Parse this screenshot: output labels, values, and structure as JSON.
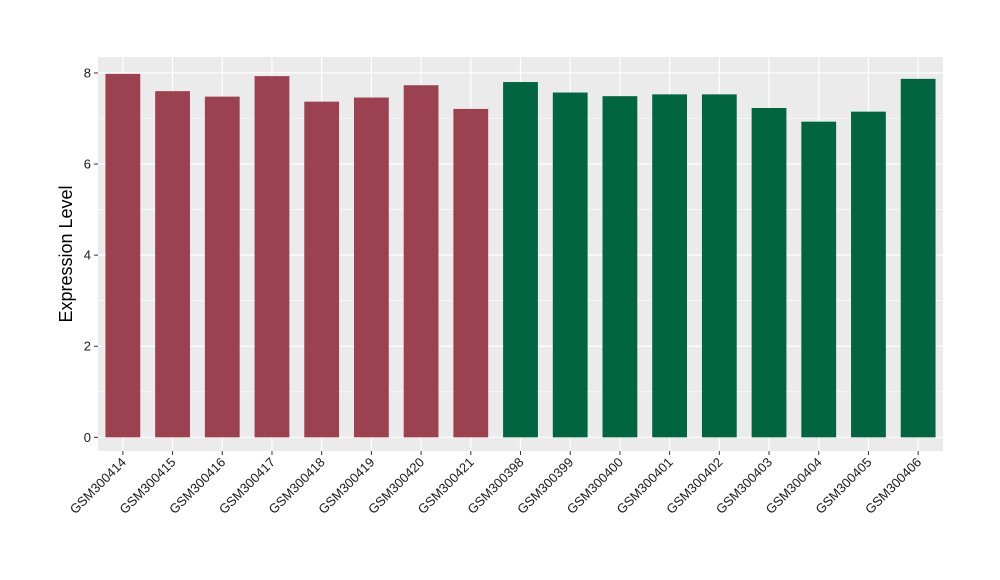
{
  "chart_data": {
    "type": "bar",
    "title": "",
    "xlabel": "",
    "ylabel": "Expression Level",
    "ylim": [
      -0.3,
      8.35
    ],
    "y_ticks": [
      0,
      2,
      4,
      6,
      8
    ],
    "grid": true,
    "legend": "none",
    "colors": {
      "group_a": "#9b4150",
      "group_b": "#006540",
      "panel": "#ebebeb",
      "grid": "#ffffff"
    },
    "categories": [
      "GSM300414",
      "GSM300415",
      "GSM300416",
      "GSM300417",
      "GSM300418",
      "GSM300419",
      "GSM300420",
      "GSM300421",
      "GSM300398",
      "GSM300399",
      "GSM300400",
      "GSM300401",
      "GSM300402",
      "GSM300403",
      "GSM300404",
      "GSM300405",
      "GSM300406"
    ],
    "values": [
      7.98,
      7.6,
      7.48,
      7.93,
      7.37,
      7.46,
      7.73,
      7.21,
      7.8,
      7.57,
      7.49,
      7.53,
      7.53,
      7.23,
      6.93,
      7.15,
      7.87
    ],
    "groups": [
      "a",
      "a",
      "a",
      "a",
      "a",
      "a",
      "a",
      "a",
      "b",
      "b",
      "b",
      "b",
      "b",
      "b",
      "b",
      "b",
      "b"
    ]
  }
}
